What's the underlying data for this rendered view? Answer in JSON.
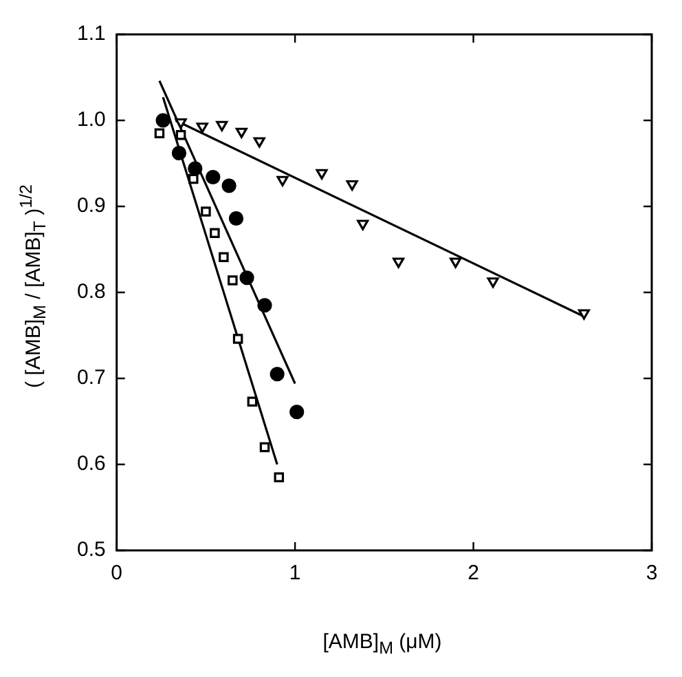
{
  "chart_data": {
    "type": "scatter",
    "xlabel": "[AMB]$_{M}$ (μM)",
    "ylabel": "( [AMB]$_{M}$ / [AMB]$_{T}$ )$^{1/2}$",
    "xlim": [
      0,
      3
    ],
    "xticks": [
      0,
      1,
      2,
      3
    ],
    "ylim": [
      0.5,
      1.1
    ],
    "yticks": [
      0.5,
      0.6,
      0.7,
      0.8,
      0.9,
      {
        "value": 1,
        "label": "1.0"
      },
      1.1
    ],
    "grid": false,
    "legend": false,
    "series": [
      {
        "color": "#000000",
        "marker": "circle",
        "x": [
          0.26,
          0.35,
          0.44,
          0.54,
          0.63,
          0.67,
          0.73,
          0.83,
          0.9,
          1.01
        ],
        "values": [
          1.0,
          0.962,
          0.944,
          0.934,
          0.924,
          0.886,
          0.817,
          0.785,
          0.705,
          0.661
        ]
      },
      {
        "color": "#000000",
        "marker": "square",
        "x": [
          0.24,
          0.36,
          0.43,
          0.5,
          0.55,
          0.6,
          0.65,
          0.68,
          0.76,
          0.83,
          0.91
        ],
        "values": [
          0.985,
          0.983,
          0.932,
          0.894,
          0.869,
          0.841,
          0.814,
          0.746,
          0.673,
          0.62,
          0.585
        ]
      },
      {
        "color": "#000000",
        "marker": "triangle",
        "x": [
          0.36,
          0.48,
          0.59,
          0.7,
          0.8,
          0.93,
          1.15,
          1.32,
          1.38,
          1.58,
          1.9,
          2.11,
          2.62
        ],
        "values": [
          0.998,
          0.993,
          0.995,
          0.987,
          0.976,
          0.931,
          0.939,
          0.926,
          0.88,
          0.836,
          0.836,
          0.813,
          0.776
        ]
      },
      {
        "type": "line",
        "color": "#000000",
        "x": [
          0.24,
          1.0
        ],
        "values": [
          1.046,
          0.694
        ]
      },
      {
        "type": "line",
        "color": "#000000",
        "x": [
          0.26,
          0.9
        ],
        "values": [
          1.027,
          0.6
        ]
      },
      {
        "type": "line",
        "color": "#000000",
        "x": [
          0.33,
          2.62
        ],
        "values": [
          1.0,
          0.772
        ]
      }
    ]
  }
}
